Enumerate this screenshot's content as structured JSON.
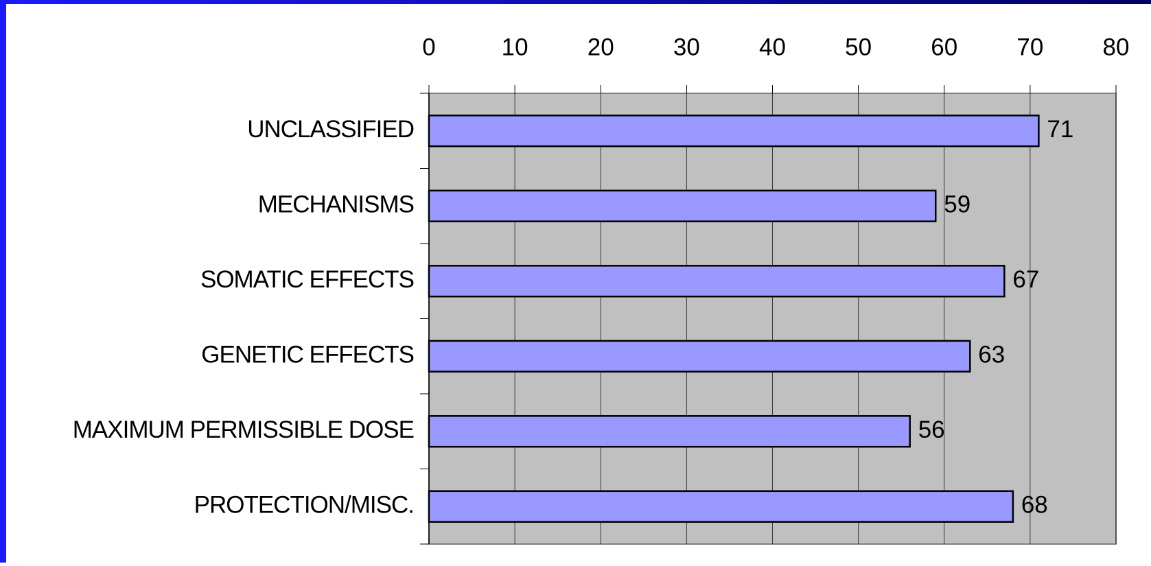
{
  "chart_data": {
    "type": "bar",
    "orientation": "horizontal",
    "categories": [
      "UNCLASSIFIED",
      "MECHANISMS",
      "SOMATIC EFFECTS",
      "GENETIC EFFECTS",
      "MAXIMUM PERMISSIBLE DOSE",
      "PROTECTION/MISC."
    ],
    "values": [
      71,
      59,
      67,
      63,
      56,
      68
    ],
    "color": "#9999ff",
    "xlim": [
      0,
      80
    ],
    "xticks": [
      0,
      10,
      20,
      30,
      40,
      50,
      60,
      70,
      80
    ],
    "grid": true
  }
}
